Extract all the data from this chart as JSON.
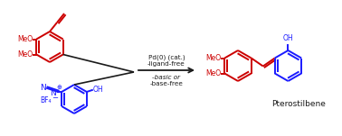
{
  "red_color": "#cc0000",
  "blue_color": "#1a1aff",
  "black_color": "#1a1a1a",
  "bg_color": "#ffffff",
  "line_width": 1.4,
  "arrow_conditions_line1": "Pd(0) (cat.)",
  "arrow_conditions_line2": "-ligand-free",
  "arrow_conditions_line3": "-basic or",
  "arrow_conditions_line4": "-base-free",
  "product_name": "Pterostilbene",
  "figsize": [
    3.78,
    1.51
  ],
  "dpi": 100
}
